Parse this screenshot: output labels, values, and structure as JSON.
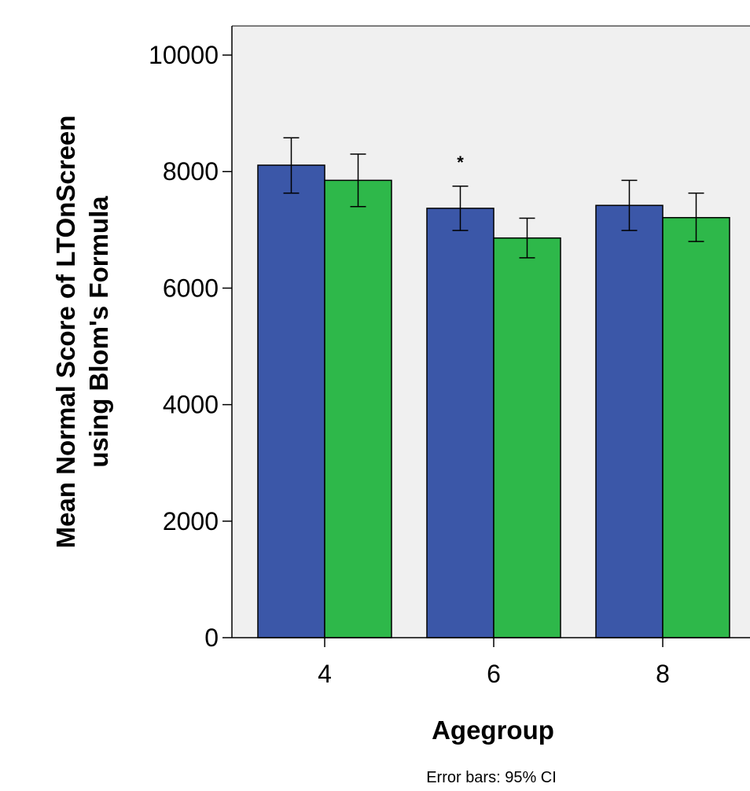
{
  "chart_data": {
    "type": "bar",
    "xlabel": "Agegroup",
    "ylabel_lines": [
      "Mean Normal Score of LTOnScreen",
      "using Blom's Formula"
    ],
    "categories": [
      "4",
      "6",
      "8"
    ],
    "ylim": [
      0,
      10500
    ],
    "yticks": [
      0,
      2000,
      4000,
      6000,
      8000,
      10000
    ],
    "grid": false,
    "series": [
      {
        "color": "#3b57a8",
        "values": [
          8110,
          7370,
          7420
        ],
        "ci_low": [
          7630,
          6990,
          6990
        ],
        "ci_high": [
          8580,
          7750,
          7850
        ]
      },
      {
        "color": "#2eb84a",
        "values": [
          7850,
          6860,
          7210
        ],
        "ci_low": [
          7400,
          6520,
          6800
        ],
        "ci_high": [
          8300,
          7200,
          7630
        ]
      }
    ],
    "annotations": [
      {
        "text": "*",
        "category": "6",
        "series": 0,
        "y": 8220
      }
    ],
    "footnote": "Error bars: 95% CI",
    "plot_background": "#f0f0f0"
  }
}
